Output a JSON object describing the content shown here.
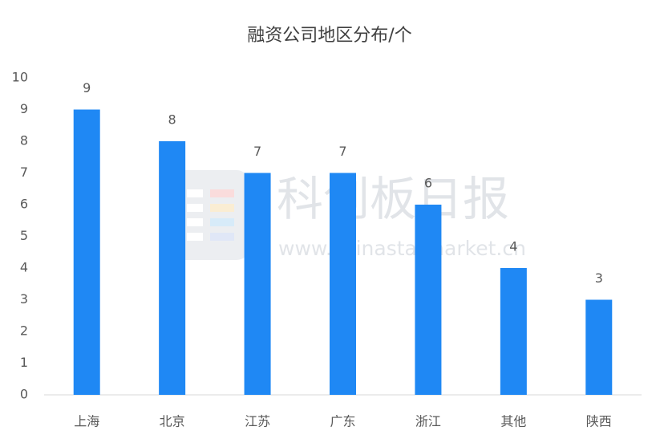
{
  "chart_data": {
    "type": "bar",
    "title": "融资公司地区分布/个",
    "categories": [
      "上海",
      "北京",
      "江苏",
      "广东",
      "浙江",
      "其他",
      "陕西"
    ],
    "values": [
      9,
      8,
      7,
      7,
      6,
      4,
      3
    ],
    "color": "#1f88f4",
    "ylim": [
      0,
      10
    ],
    "yticks": [
      0,
      1,
      2,
      3,
      4,
      5,
      6,
      7,
      8,
      9,
      10
    ],
    "grid": false,
    "watermark": {
      "title": "科创板日报",
      "url": "www.chinastarmarket.cn"
    }
  }
}
